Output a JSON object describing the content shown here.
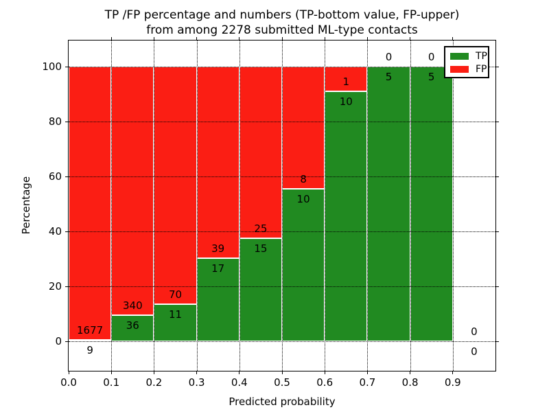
{
  "title": {
    "line1": "TP /FP percentage and numbers (TP-bottom value, FP-upper)",
    "line2": "from among 2278 submitted ML-type contacts"
  },
  "chart_data": {
    "type": "bar",
    "stacked": true,
    "title": "TP /FP percentage and numbers (TP-bottom value, FP-upper) from among 2278 submitted ML-type contacts",
    "xlabel": "Predicted probability",
    "ylabel": "Percentage",
    "xlim": [
      0,
      1.0
    ],
    "ylim": [
      -10.75,
      109.5
    ],
    "grid": true,
    "total_contacts": 2278,
    "bin_width": 0.1,
    "x_tick_labels": [
      "0.0",
      "0.1",
      "0.2",
      "0.3",
      "0.4",
      "0.5",
      "0.6",
      "0.7",
      "0.8",
      "0.9"
    ],
    "y_tick_values": [
      0,
      20,
      40,
      60,
      80,
      100
    ],
    "bins": [
      {
        "range": [
          0.0,
          0.1
        ],
        "tp": 9,
        "fp": 1677,
        "tp_pct": 0.53
      },
      {
        "range": [
          0.1,
          0.2
        ],
        "tp": 36,
        "fp": 340,
        "tp_pct": 9.57
      },
      {
        "range": [
          0.2,
          0.3
        ],
        "tp": 11,
        "fp": 70,
        "tp_pct": 13.58
      },
      {
        "range": [
          0.3,
          0.4
        ],
        "tp": 17,
        "fp": 39,
        "tp_pct": 30.36
      },
      {
        "range": [
          0.4,
          0.5
        ],
        "tp": 15,
        "fp": 25,
        "tp_pct": 37.5
      },
      {
        "range": [
          0.5,
          0.6
        ],
        "tp": 10,
        "fp": 8,
        "tp_pct": 55.56
      },
      {
        "range": [
          0.6,
          0.7
        ],
        "tp": 10,
        "fp": 1,
        "tp_pct": 90.91
      },
      {
        "range": [
          0.7,
          0.8
        ],
        "tp": 5,
        "fp": 0,
        "tp_pct": 100
      },
      {
        "range": [
          0.8,
          0.9
        ],
        "tp": 5,
        "fp": 0,
        "tp_pct": 100
      },
      {
        "range": [
          0.9,
          1.0
        ],
        "tp": 0,
        "fp": 0,
        "tp_pct": 0
      }
    ],
    "series": [
      {
        "name": "TP",
        "color": "#218a21",
        "values": [
          9,
          36,
          11,
          17,
          15,
          10,
          10,
          5,
          5,
          0
        ]
      },
      {
        "name": "FP",
        "color": "#fb1e14",
        "values": [
          1677,
          340,
          70,
          39,
          25,
          8,
          1,
          0,
          0,
          0
        ]
      }
    ],
    "legend": {
      "position": "upper-right",
      "entries": [
        {
          "label": "TP",
          "color": "#218a21"
        },
        {
          "label": "FP",
          "color": "#fb1e14"
        }
      ]
    },
    "bar_edge_color": "#ffffff",
    "grid_color": "#000000"
  }
}
